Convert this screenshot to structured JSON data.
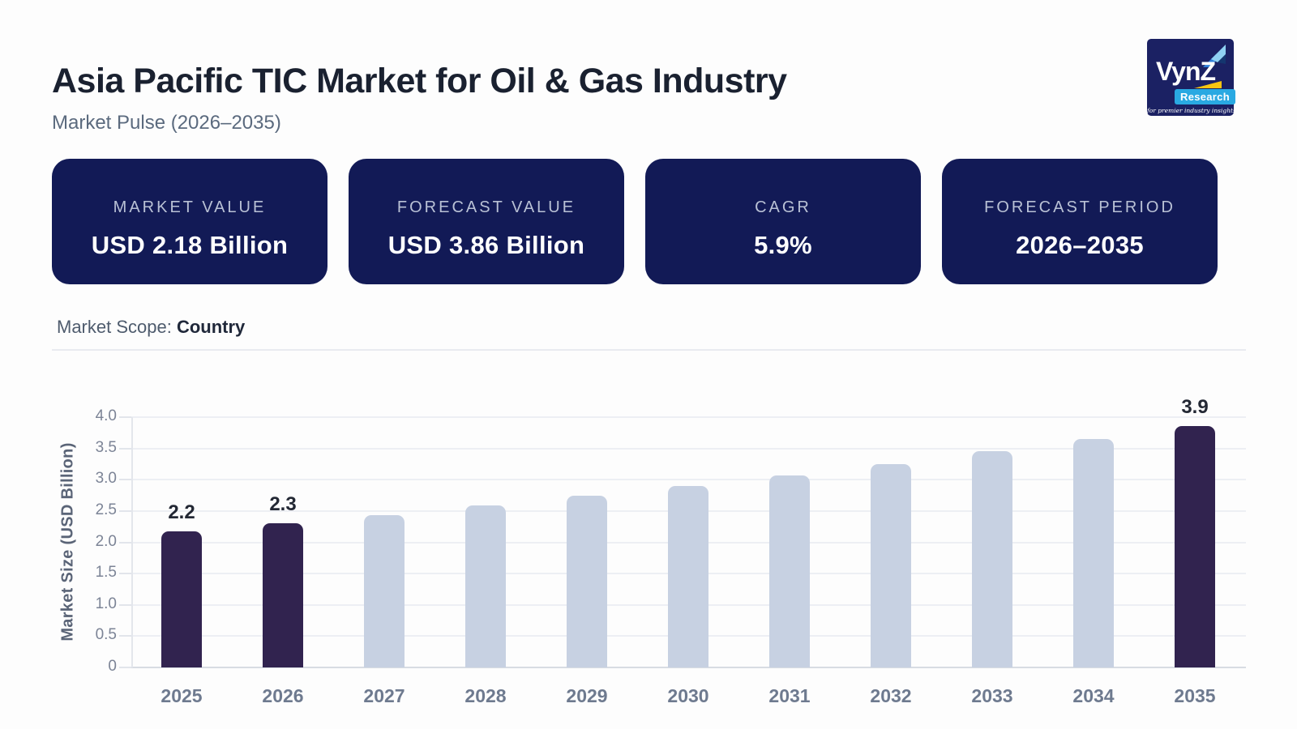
{
  "page": {
    "title": "Asia Pacific TIC Market for Oil & Gas Industry",
    "subtitle": "Market Pulse (2026–2035)",
    "market_scope_label": "Market Scope:",
    "market_scope_value": "Country"
  },
  "logo": {
    "name": "VynZ",
    "sub": "Research",
    "tagline": "for premier industry insights"
  },
  "stat_cards": [
    {
      "label": "MARKET VALUE",
      "value": "USD 2.18 Billion"
    },
    {
      "label": "FORECAST VALUE",
      "value": "USD 3.86 Billion"
    },
    {
      "label": "CAGR",
      "value": "5.9%"
    },
    {
      "label": "FORECAST PERIOD",
      "value": "2026–2035"
    }
  ],
  "colors": {
    "card_bg": "#121a56",
    "logo_bg": "#1b2163",
    "accent_cyan": "#29a9e2",
    "accent_yellow": "#f7c411",
    "bar_highlight": "#31234f",
    "bar_default": "#c7d1e2",
    "gridline": "#edeff4",
    "baseline": "#d8dce3"
  },
  "chart_data": {
    "type": "bar",
    "title": "",
    "xlabel": "",
    "ylabel": "Market Size (USD Billion)",
    "categories": [
      "2025",
      "2026",
      "2027",
      "2028",
      "2029",
      "2030",
      "2031",
      "2032",
      "2033",
      "2034",
      "2035"
    ],
    "values": [
      2.18,
      2.31,
      2.44,
      2.59,
      2.74,
      2.9,
      3.07,
      3.25,
      3.45,
      3.65,
      3.86
    ],
    "bar_labels": [
      "2.2",
      "2.3",
      "",
      "",
      "",
      "",
      "",
      "",
      "",
      "",
      "3.9"
    ],
    "highlighted": [
      0,
      1,
      10
    ],
    "ylim": [
      0,
      4.0
    ],
    "ytick_step": 0.5,
    "grid": true,
    "legend": null
  }
}
